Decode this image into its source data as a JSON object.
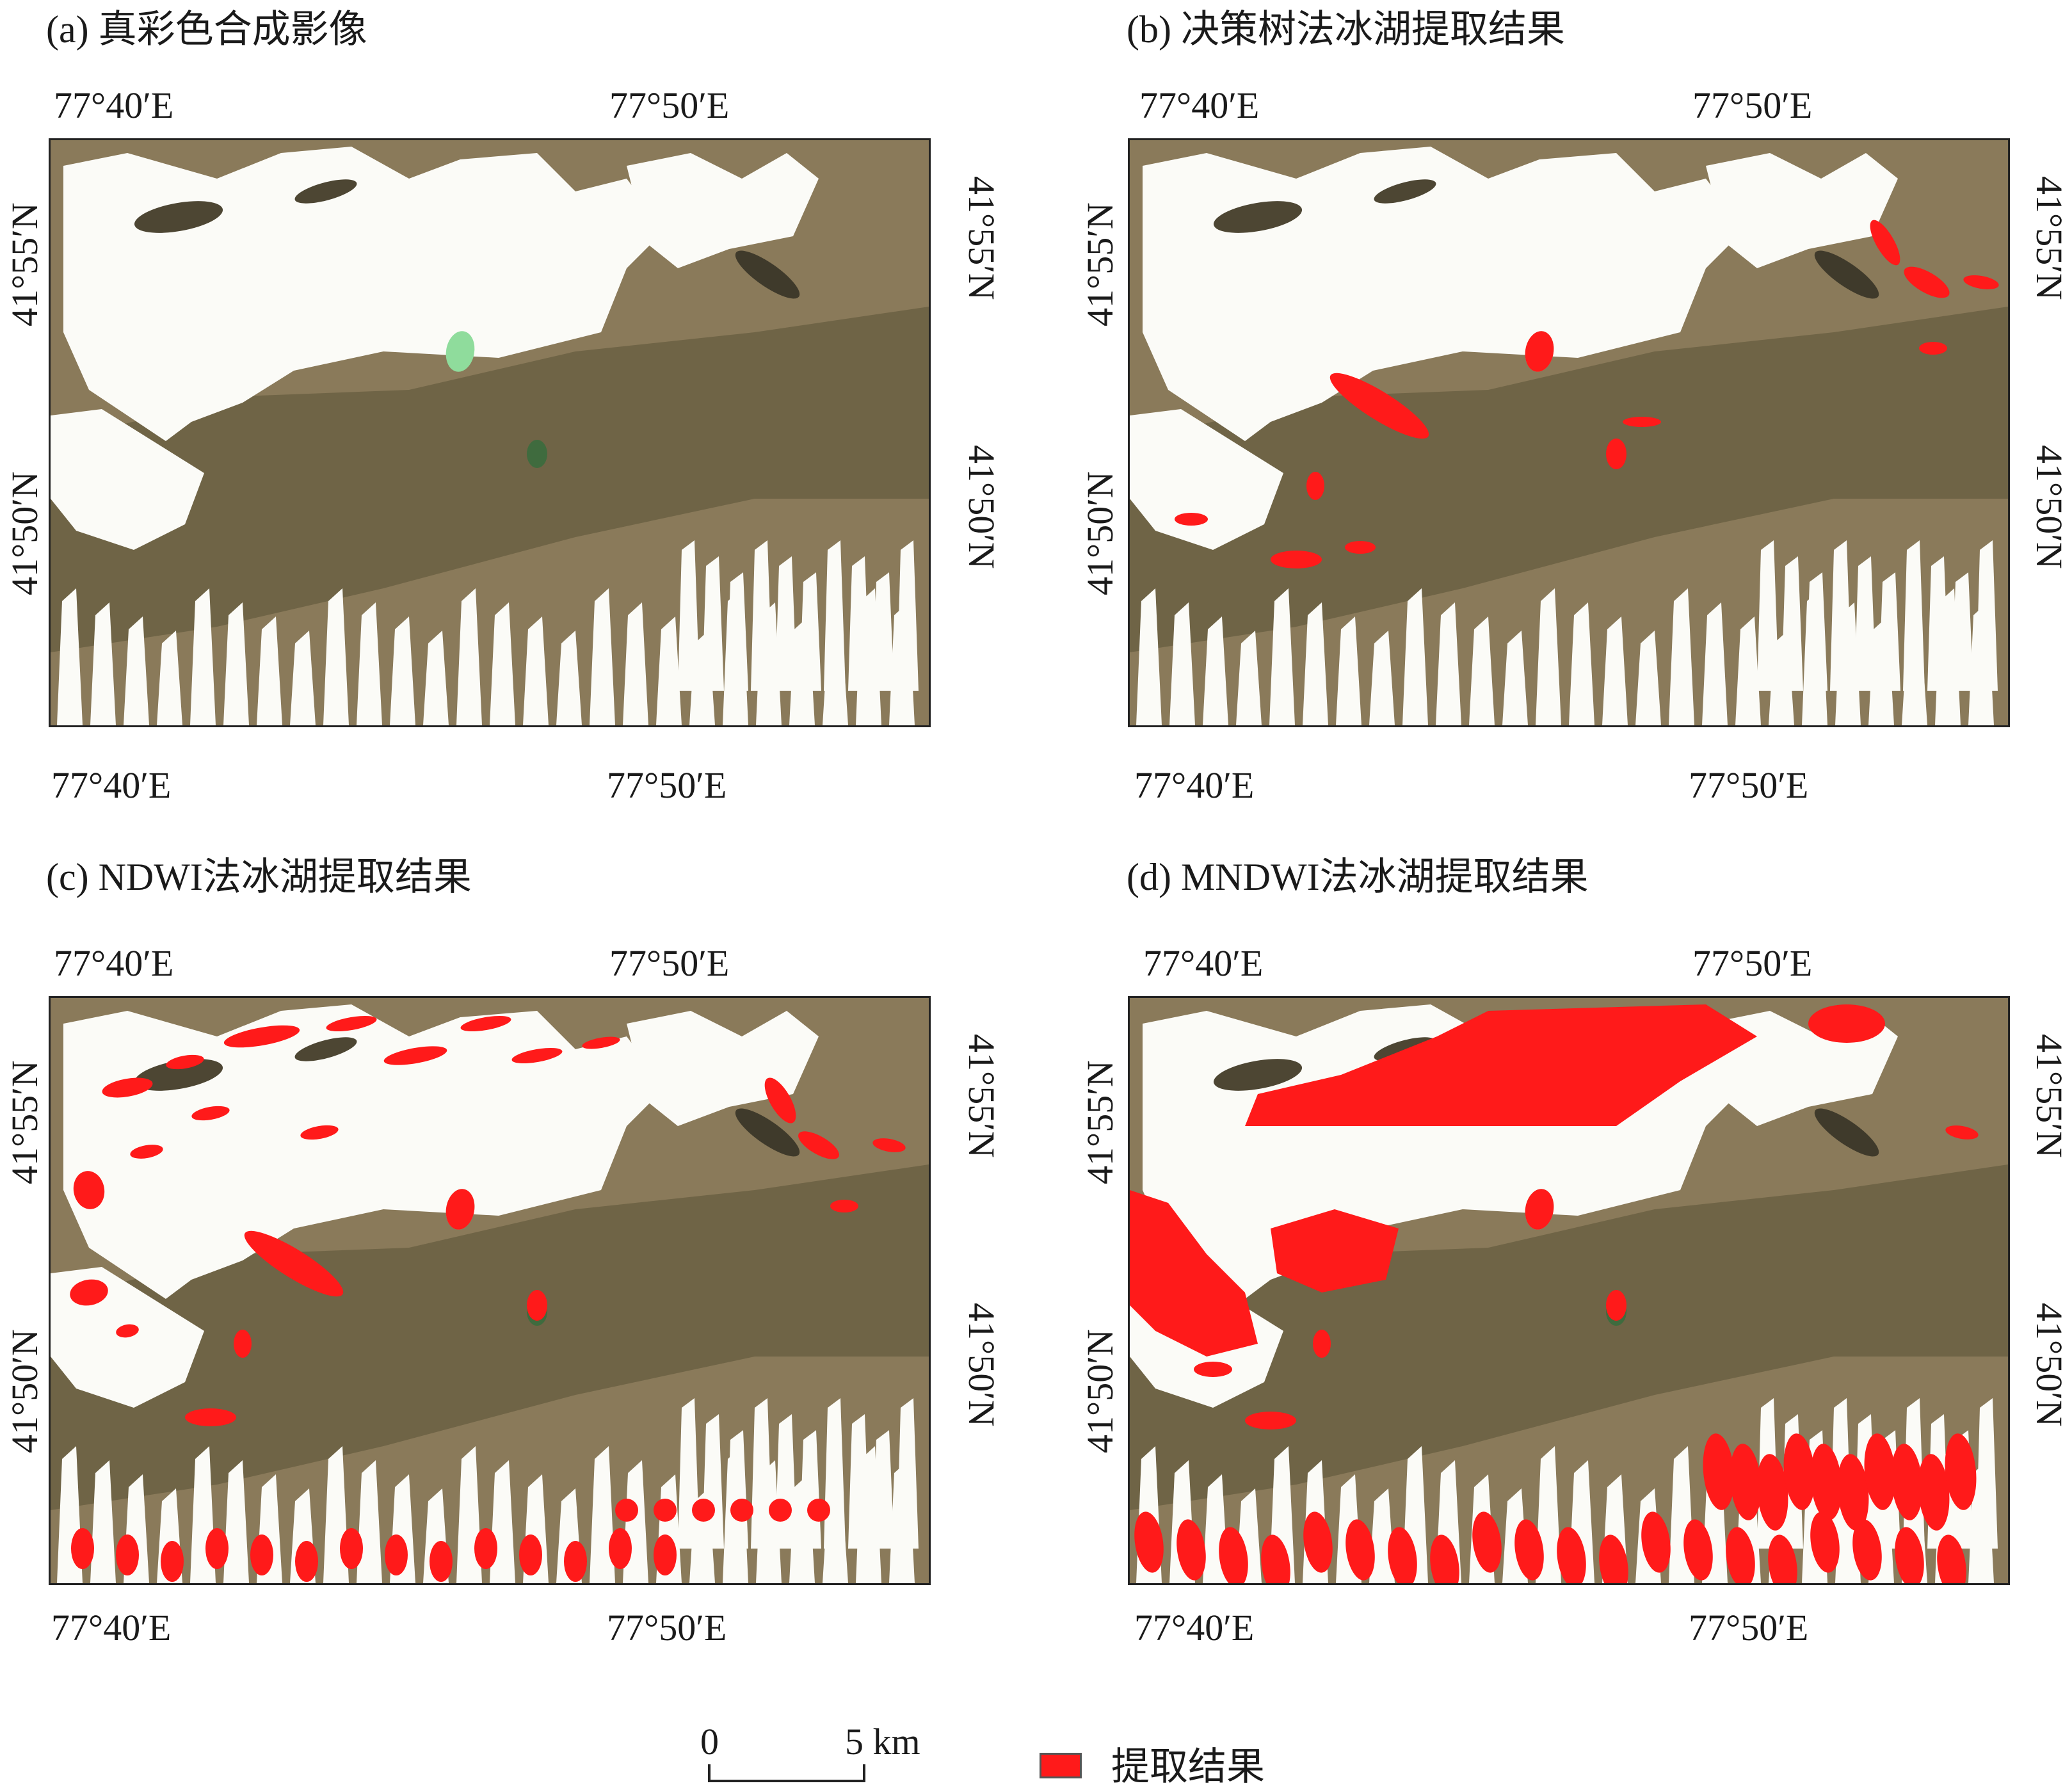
{
  "figure": {
    "lon_labels": {
      "left": "77°40′E",
      "right": "77°50′E"
    },
    "lat_labels": {
      "upper": "41°55′N",
      "lower": "41°50′N"
    },
    "panels": [
      {
        "id": "a",
        "title": "(a) 真彩色合成影像",
        "extraction": "none"
      },
      {
        "id": "b",
        "title": "(b) 决策树法冰湖提取结果",
        "extraction": "decision-tree"
      },
      {
        "id": "c",
        "title": "(c) NDWI法冰湖提取结果",
        "extraction": "ndwi"
      },
      {
        "id": "d",
        "title": "(d) MNDWI法冰湖提取结果",
        "extraction": "mndwi"
      }
    ],
    "scale_bar": {
      "start_label": "0",
      "end_label": "5 km"
    },
    "legend": {
      "label": "提取结果",
      "color": "#ff1a1a"
    },
    "colors": {
      "extraction": "#ff1a1a",
      "terrain": "#8a7a5a",
      "snow": "#fbfbf7",
      "lake": "#8fdc9c"
    }
  }
}
